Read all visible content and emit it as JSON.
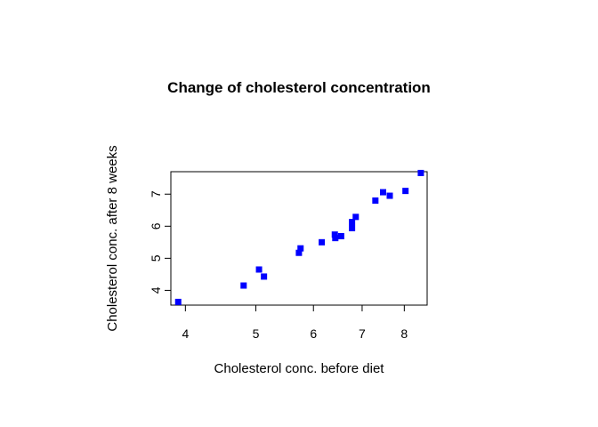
{
  "chart_data": {
    "type": "scatter",
    "title": "Change of cholesterol concentration",
    "xlabel": "Cholesterol conc. before diet",
    "ylabel": "Cholesterol conc. after 8 weeks",
    "x_scale": "log",
    "xlim": [
      3.82,
      8.6
    ],
    "ylim": [
      3.54,
      7.7
    ],
    "x_ticks": [
      4,
      5,
      6,
      7,
      8
    ],
    "y_ticks": [
      4,
      5,
      6,
      7
    ],
    "grid": false,
    "marker": "filled-square",
    "point_color": "#0000ff",
    "points": [
      {
        "x": 3.91,
        "y": 3.64
      },
      {
        "x": 4.81,
        "y": 4.15
      },
      {
        "x": 5.05,
        "y": 4.65
      },
      {
        "x": 5.13,
        "y": 4.43
      },
      {
        "x": 5.73,
        "y": 5.17
      },
      {
        "x": 5.76,
        "y": 5.31
      },
      {
        "x": 6.16,
        "y": 5.5
      },
      {
        "x": 6.42,
        "y": 5.74
      },
      {
        "x": 6.43,
        "y": 5.63
      },
      {
        "x": 6.55,
        "y": 5.69
      },
      {
        "x": 6.78,
        "y": 6.13
      },
      {
        "x": 6.78,
        "y": 5.94
      },
      {
        "x": 6.86,
        "y": 6.29
      },
      {
        "x": 7.3,
        "y": 6.8
      },
      {
        "x": 7.48,
        "y": 7.06
      },
      {
        "x": 7.64,
        "y": 6.95
      },
      {
        "x": 8.03,
        "y": 7.1
      },
      {
        "x": 8.43,
        "y": 7.66
      }
    ]
  }
}
